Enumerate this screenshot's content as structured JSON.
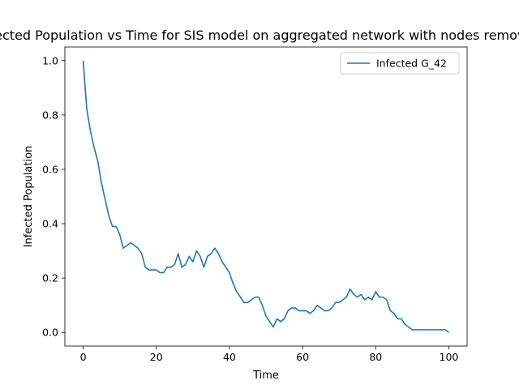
{
  "chart_data": {
    "type": "line",
    "title": "Infected Population vs Time for SIS model on aggregated network with nodes removed",
    "xlabel": "Time",
    "ylabel": "Infected Population",
    "xlim": [
      -5,
      105
    ],
    "ylim": [
      -0.05,
      1.05
    ],
    "xticks": [
      0,
      20,
      40,
      60,
      80,
      100
    ],
    "yticks": [
      0.0,
      0.2,
      0.4,
      0.6,
      0.8,
      1.0
    ],
    "xtick_labels": [
      "0",
      "20",
      "40",
      "60",
      "80",
      "100"
    ],
    "ytick_labels": [
      "0.0",
      "0.2",
      "0.4",
      "0.6",
      "0.8",
      "1.0"
    ],
    "grid": false,
    "legend_position": "top-right",
    "series": [
      {
        "name": "Infected G_42",
        "color": "#1f77b4",
        "x": [
          0,
          1,
          2,
          3,
          4,
          5,
          6,
          7,
          8,
          9,
          10,
          11,
          12,
          13,
          14,
          15,
          16,
          17,
          18,
          19,
          20,
          21,
          22,
          23,
          24,
          25,
          26,
          27,
          28,
          29,
          30,
          31,
          32,
          33,
          34,
          35,
          36,
          37,
          38,
          39,
          40,
          41,
          42,
          43,
          44,
          45,
          46,
          47,
          48,
          49,
          50,
          51,
          52,
          53,
          54,
          55,
          56,
          57,
          58,
          59,
          60,
          61,
          62,
          63,
          64,
          65,
          66,
          67,
          68,
          69,
          70,
          71,
          72,
          73,
          74,
          75,
          76,
          77,
          78,
          79,
          80,
          81,
          82,
          83,
          84,
          85,
          86,
          87,
          88,
          89,
          90,
          91,
          92,
          93,
          94,
          95,
          96,
          97,
          98,
          99,
          100
        ],
        "y": [
          1.0,
          0.82,
          0.74,
          0.68,
          0.63,
          0.55,
          0.49,
          0.43,
          0.39,
          0.39,
          0.36,
          0.31,
          0.32,
          0.33,
          0.32,
          0.31,
          0.29,
          0.24,
          0.23,
          0.23,
          0.23,
          0.22,
          0.22,
          0.24,
          0.24,
          0.25,
          0.29,
          0.24,
          0.25,
          0.28,
          0.26,
          0.3,
          0.28,
          0.24,
          0.28,
          0.29,
          0.31,
          0.29,
          0.26,
          0.24,
          0.22,
          0.18,
          0.15,
          0.13,
          0.11,
          0.11,
          0.12,
          0.13,
          0.13,
          0.1,
          0.06,
          0.04,
          0.02,
          0.05,
          0.04,
          0.05,
          0.08,
          0.09,
          0.09,
          0.08,
          0.08,
          0.08,
          0.07,
          0.08,
          0.1,
          0.09,
          0.08,
          0.08,
          0.09,
          0.11,
          0.11,
          0.12,
          0.13,
          0.16,
          0.14,
          0.13,
          0.14,
          0.12,
          0.13,
          0.12,
          0.15,
          0.13,
          0.13,
          0.12,
          0.08,
          0.07,
          0.05,
          0.05,
          0.03,
          0.02,
          0.01,
          0.01,
          0.01,
          0.01,
          0.01,
          0.01,
          0.01,
          0.01,
          0.01,
          0.01,
          0.0
        ]
      }
    ]
  }
}
